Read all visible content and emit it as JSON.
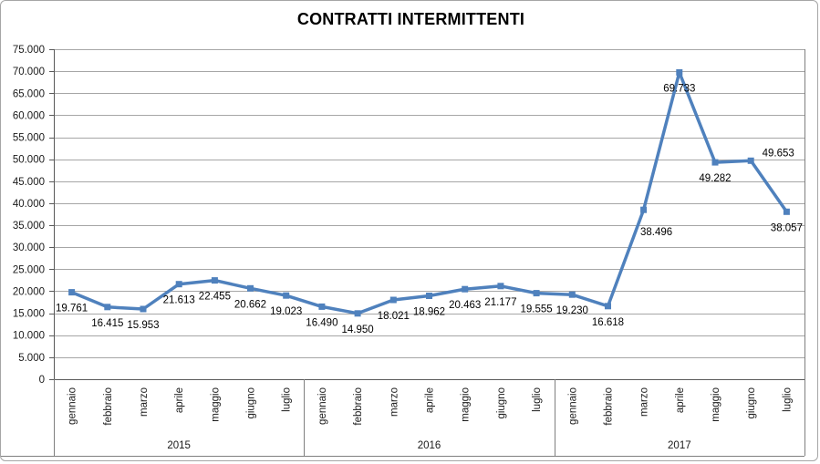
{
  "chart_data": {
    "type": "line",
    "title": "CONTRATTI INTERMITTENTI",
    "legend": "none",
    "grid": true,
    "groups": [
      {
        "year": "2015",
        "months": [
          "gennaio",
          "febbraio",
          "marzo",
          "aprile",
          "maggio",
          "giugno",
          "luglio"
        ]
      },
      {
        "year": "2016",
        "months": [
          "gennaio",
          "febbraio",
          "marzo",
          "aprile",
          "maggio",
          "giugno",
          "luglio"
        ]
      },
      {
        "year": "2017",
        "months": [
          "gennaio",
          "febbraio",
          "marzo",
          "aprile",
          "maggio",
          "giugno",
          "luglio"
        ]
      }
    ],
    "series": [
      {
        "color": "#4F81BD",
        "values": [
          19761,
          16415,
          15953,
          21613,
          22455,
          20662,
          19023,
          16490,
          14950,
          18021,
          18962,
          20463,
          21177,
          19555,
          19230,
          16618,
          38496,
          69733,
          49282,
          49653,
          38057
        ],
        "point_labels": [
          "19.761",
          "16.415",
          "15.953",
          "21.613",
          "22.455",
          "20.662",
          "19.023",
          "16.490",
          "14.950",
          "18.021",
          "18.962",
          "20.463",
          "21.177",
          "19.555",
          "19.230",
          "16.618",
          "38.496",
          "69.733",
          "49.282",
          "49.653",
          "38.057"
        ]
      }
    ],
    "y_axis": {
      "min": 0,
      "max": 75000,
      "step": 5000,
      "tick_labels": [
        "0",
        "5.000",
        "10.000",
        "15.000",
        "20.000",
        "25.000",
        "30.000",
        "35.000",
        "40.000",
        "45.000",
        "50.000",
        "55.000",
        "60.000",
        "65.000",
        "70.000",
        "75.000"
      ]
    },
    "label_offsets": {
      "default": [
        0,
        17
      ],
      "16": [
        14,
        24
      ],
      "19": [
        30,
        -9
      ]
    },
    "palette": {
      "gridline": "#a6a6a6",
      "axis": "#595959",
      "band": "#7f7f7f",
      "text": "#1a1a1a",
      "frame_border": "#a6a6a6"
    }
  }
}
